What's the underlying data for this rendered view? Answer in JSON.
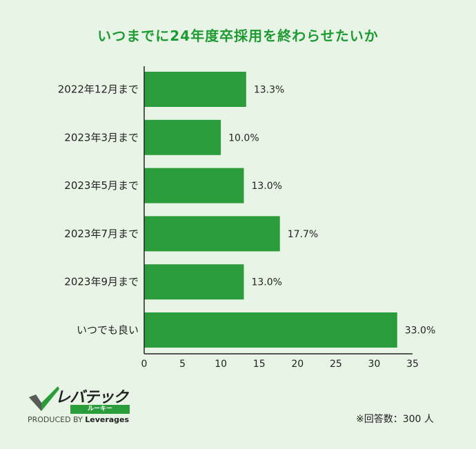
{
  "title": "いつまでに24年度卒採用を終わらせたいか",
  "chart_data": {
    "type": "bar",
    "orientation": "horizontal",
    "title": "いつまでに24年度卒採用を終わらせたいか",
    "categories": [
      "2022年12月まで",
      "2023年3月まで",
      "2023年5月まで",
      "2023年7月まで",
      "2023年9月まで",
      "いつでも良い"
    ],
    "values": [
      13.3,
      10.0,
      13.0,
      17.7,
      13.0,
      33.0
    ],
    "value_labels": [
      "13.3%",
      "10.0%",
      "13.0%",
      "17.7%",
      "13.0%",
      "33.0%"
    ],
    "xlim": [
      0,
      35
    ],
    "xticks": [
      "0",
      "5",
      "10",
      "15",
      "20",
      "25",
      "30",
      "35"
    ],
    "bar_color": "#2a9d3a",
    "grid": false
  },
  "logo": {
    "brand": "レバテック",
    "sub": "ルーキー",
    "produced_by": "PRODUCED BY",
    "company": "Leverages"
  },
  "note": "※回答数：300 人"
}
